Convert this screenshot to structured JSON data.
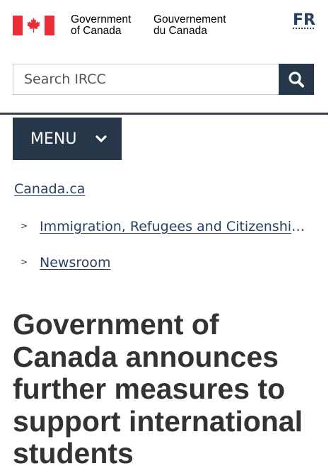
{
  "header": {
    "signature_en": [
      "Government",
      "of Canada"
    ],
    "signature_fr": [
      "Gouvernement",
      "du Canada"
    ],
    "language_toggle": "FR",
    "flag_color": "#eb2d37"
  },
  "search": {
    "placeholder": "Search IRCC",
    "button_color": "#26374a",
    "icon": "search-icon"
  },
  "menu": {
    "label": "MENU",
    "icon": "chevron-down-icon",
    "background": "#26374a"
  },
  "breadcrumbs": {
    "home": "Canada.ca",
    "items": [
      {
        "separator": ">",
        "label": "Immigration, Refugees and Citizenship Canada"
      },
      {
        "separator": ">",
        "label": "Newsroom"
      }
    ]
  },
  "page": {
    "title": "Government of Canada announces further measures to support international students"
  }
}
